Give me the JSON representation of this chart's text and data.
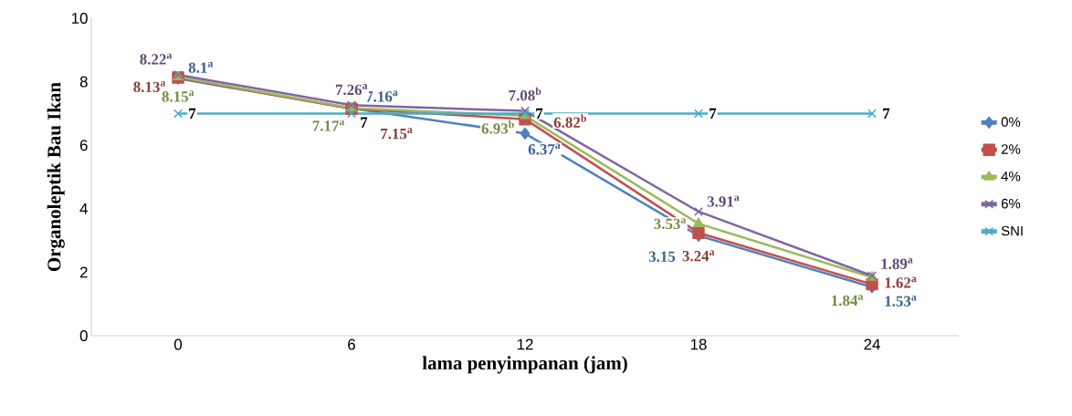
{
  "chart_data": {
    "type": "line",
    "xlabel": "lama penyimpanan (jam)",
    "ylabel": "Organoleptik Bau Ikan",
    "categories": [
      "0",
      "6",
      "12",
      "18",
      "24"
    ],
    "series": [
      {
        "name": "0%",
        "color": "#4f81bd",
        "marker": "diamond",
        "values": [
          8.1,
          7.16,
          6.37,
          3.15,
          1.53
        ],
        "value_labels": [
          "8.1$^{a}$",
          "7.16$^{a}$",
          "6.37$^{a}$",
          "3.15",
          "1.53$^{a}$"
        ]
      },
      {
        "name": "2%",
        "color": "#c0504d",
        "marker": "square",
        "values": [
          8.13,
          7.15,
          6.82,
          3.24,
          1.62
        ],
        "value_labels": [
          "8.13$^{a}$",
          "7.15$^{a}$",
          "6.82$^{b}$",
          "3.24$^{a}$",
          "1.62$^{a}$"
        ]
      },
      {
        "name": "4%",
        "color": "#9bbb59",
        "marker": "triangle",
        "values": [
          8.15,
          7.17,
          6.93,
          3.53,
          1.84
        ],
        "value_labels": [
          "8.15$^{a}$",
          "7.17$^{a}$",
          "6.93$^{b}$",
          "3.53$^{a}$",
          "1.84$^{a}$"
        ]
      },
      {
        "name": "6%",
        "color": "#8064a2",
        "marker": "cross",
        "values": [
          8.22,
          7.26,
          7.08,
          3.91,
          1.89
        ],
        "value_labels": [
          "8.22$^{a}$",
          "7.26$^{a}$",
          "7.08$^{b}$",
          "3.91$^{a}$",
          "1.89$^{a}$"
        ]
      },
      {
        "name": "SNI",
        "color": "#4bacc6",
        "marker": "cross",
        "values": [
          7,
          7,
          7,
          7,
          7
        ],
        "value_labels": [
          "7",
          "7",
          "7",
          "7",
          "7"
        ]
      }
    ],
    "ylim": [
      0,
      10
    ],
    "yticks": [
      0,
      2,
      4,
      6,
      8,
      10
    ],
    "grid": false,
    "legend": "right",
    "line_style": "solid"
  }
}
